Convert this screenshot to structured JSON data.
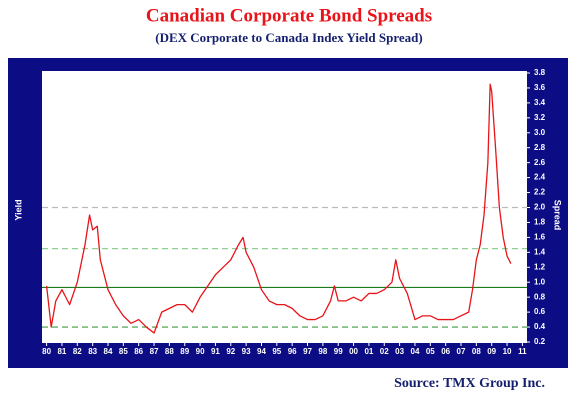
{
  "chart_data": {
    "type": "line",
    "title": "Canadian Corporate Bond Spreads",
    "subtitle": "(DEX Corporate to Canada Index Yield Spread)",
    "source": "Source: TMX Group Inc.",
    "y_label_left": "Yield",
    "y_label_right": "Spread",
    "x": [
      1980,
      1980.3,
      1980.6,
      1981,
      1981.5,
      1982,
      1982.5,
      1982.8,
      1983,
      1983.3,
      1983.5,
      1984,
      1984.5,
      1985,
      1985.5,
      1986,
      1986.5,
      1987,
      1987.5,
      1988,
      1988.5,
      1989,
      1989.5,
      1990,
      1990.5,
      1991,
      1991.5,
      1992,
      1992.5,
      1992.8,
      1993,
      1993.5,
      1994,
      1994.5,
      1995,
      1995.5,
      1996,
      1996.5,
      1997,
      1997.5,
      1998,
      1998.5,
      1998.75,
      1999,
      1999.5,
      2000,
      2000.5,
      2001,
      2001.5,
      2002,
      2002.5,
      2002.75,
      2003,
      2003.5,
      2004,
      2004.5,
      2005,
      2005.5,
      2006,
      2006.5,
      2007,
      2007.5,
      2007.75,
      2008,
      2008.25,
      2008.5,
      2008.75,
      2008.9,
      2009,
      2009.25,
      2009.5,
      2009.75,
      2010,
      2010.25
    ],
    "series": [
      {
        "name": "Spread",
        "color": "#e8141a",
        "values": [
          0.95,
          0.4,
          0.75,
          0.9,
          0.7,
          1.0,
          1.5,
          1.9,
          1.7,
          1.75,
          1.3,
          0.9,
          0.7,
          0.55,
          0.45,
          0.5,
          0.4,
          0.32,
          0.6,
          0.65,
          0.7,
          0.7,
          0.6,
          0.8,
          0.95,
          1.1,
          1.2,
          1.3,
          1.5,
          1.6,
          1.4,
          1.2,
          0.9,
          0.75,
          0.7,
          0.7,
          0.65,
          0.55,
          0.5,
          0.5,
          0.55,
          0.75,
          0.95,
          0.75,
          0.75,
          0.8,
          0.75,
          0.85,
          0.85,
          0.9,
          1.0,
          1.3,
          1.05,
          0.85,
          0.5,
          0.55,
          0.55,
          0.5,
          0.5,
          0.5,
          0.55,
          0.6,
          0.9,
          1.3,
          1.5,
          1.9,
          2.6,
          3.65,
          3.55,
          2.8,
          2.0,
          1.6,
          1.35,
          1.25
        ]
      }
    ],
    "reference_lines": [
      {
        "value": 2.0,
        "color": "#bbbbbb",
        "style": "dashed"
      },
      {
        "value": 1.45,
        "color": "#8fcf8f",
        "style": "dashed"
      },
      {
        "value": 0.93,
        "color": "#1e7a1e",
        "style": "solid"
      },
      {
        "value": 0.4,
        "color": "#3c9a3c",
        "style": "dashed"
      }
    ],
    "xlim": [
      1979.7,
      2011.3
    ],
    "ylim": [
      0.2,
      3.8
    ],
    "xticks": [
      {
        "value": 1980,
        "label": "80"
      },
      {
        "value": 1981,
        "label": "81"
      },
      {
        "value": 1982,
        "label": "82"
      },
      {
        "value": 1983,
        "label": "83"
      },
      {
        "value": 1984,
        "label": "84"
      },
      {
        "value": 1985,
        "label": "85"
      },
      {
        "value": 1986,
        "label": "86"
      },
      {
        "value": 1987,
        "label": "87"
      },
      {
        "value": 1988,
        "label": "88"
      },
      {
        "value": 1989,
        "label": "89"
      },
      {
        "value": 1990,
        "label": "90"
      },
      {
        "value": 1991,
        "label": "91"
      },
      {
        "value": 1992,
        "label": "92"
      },
      {
        "value": 1993,
        "label": "93"
      },
      {
        "value": 1994,
        "label": "94"
      },
      {
        "value": 1995,
        "label": "95"
      },
      {
        "value": 1996,
        "label": "96"
      },
      {
        "value": 1997,
        "label": "97"
      },
      {
        "value": 1998,
        "label": "98"
      },
      {
        "value": 1999,
        "label": "99"
      },
      {
        "value": 2000,
        "label": "00"
      },
      {
        "value": 2001,
        "label": "01"
      },
      {
        "value": 2002,
        "label": "02"
      },
      {
        "value": 2003,
        "label": "03"
      },
      {
        "value": 2004,
        "label": "04"
      },
      {
        "value": 2005,
        "label": "05"
      },
      {
        "value": 2006,
        "label": "06"
      },
      {
        "value": 2007,
        "label": "07"
      },
      {
        "value": 2008,
        "label": "08"
      },
      {
        "value": 2009,
        "label": "09"
      },
      {
        "value": 2010,
        "label": "10"
      },
      {
        "value": 2011,
        "label": "11"
      }
    ],
    "yticks": [
      0.2,
      0.4,
      0.6,
      0.8,
      {
        "value": 1,
        "label": "1.0"
      },
      1.2,
      1.4,
      1.6,
      1.8,
      {
        "value": 2,
        "label": "2.0"
      },
      2.2,
      2.4,
      2.6,
      2.8,
      {
        "value": 3,
        "label": "3.0"
      },
      3.2,
      3.4,
      3.6,
      3.8
    ]
  }
}
